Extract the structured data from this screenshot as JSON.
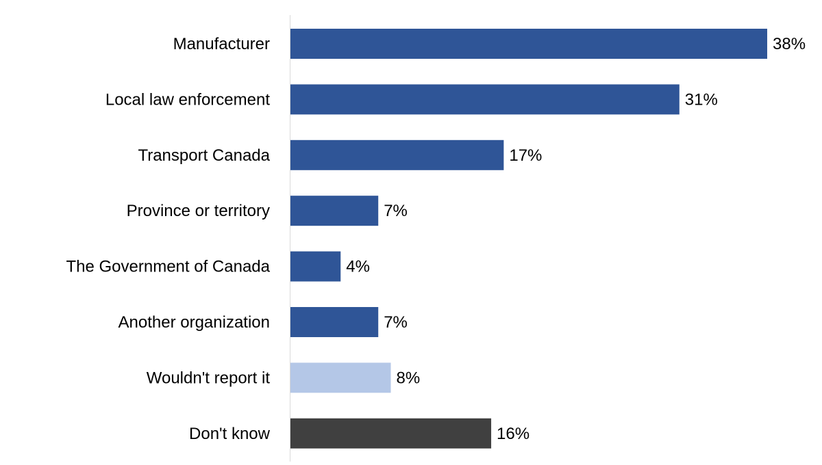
{
  "chart_data": {
    "type": "bar",
    "orientation": "horizontal",
    "title": "",
    "xlabel": "",
    "ylabel": "",
    "xlim": [
      0,
      38
    ],
    "grid": false,
    "categories": [
      "Manufacturer",
      "Local law enforcement",
      "Transport Canada",
      "Province or territory",
      "The Government of Canada",
      "Another organization",
      "Wouldn't report it",
      "Don't know"
    ],
    "values": [
      38,
      31,
      17,
      7,
      4,
      7,
      8,
      16
    ],
    "labels": [
      "38%",
      "31%",
      "17%",
      "7%",
      "4%",
      "7%",
      "8%",
      "16%"
    ],
    "colors": [
      "#2F5597",
      "#2F5597",
      "#2F5597",
      "#2F5597",
      "#2F5597",
      "#2F5597",
      "#B4C7E7",
      "#404040"
    ]
  }
}
